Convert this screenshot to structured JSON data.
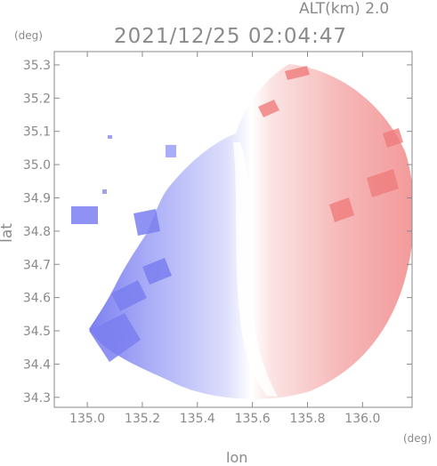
{
  "header": {
    "altitude": "ALT(km)  2.0",
    "timestamp": "2021/12/25 02:04:47"
  },
  "axes": {
    "y_unit": "(deg)",
    "x_unit": "(deg)",
    "y_label": "lat",
    "x_label": "lon",
    "x_ticks": [
      "135.0",
      "135.2",
      "135.4",
      "135.6",
      "135.8",
      "136.0"
    ],
    "y_ticks": [
      "35.3",
      "35.2",
      "35.1",
      "35.0",
      "34.9",
      "34.8",
      "34.7",
      "34.6",
      "34.5",
      "34.4",
      "34.3"
    ],
    "x_range": [
      134.88,
      136.18
    ],
    "y_range": [
      34.27,
      35.34
    ]
  },
  "map": {
    "type": "doppler-velocity-radar",
    "colors": {
      "approach": "#7b7ff0",
      "approach_light": "#d9dbfb",
      "recede": "#f07d7d",
      "recede_light": "#fbe1e1",
      "neutral": "#ffffff",
      "axis": "#8a8a8a"
    }
  }
}
